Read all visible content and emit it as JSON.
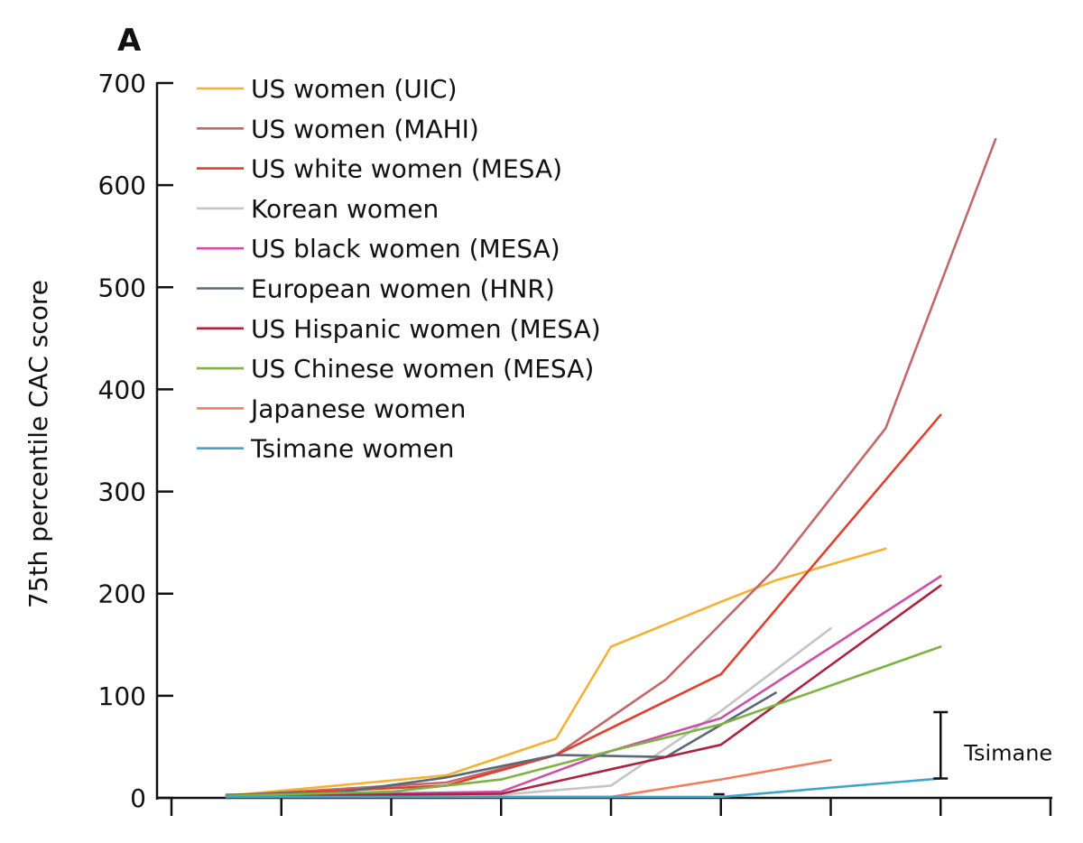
{
  "panel_label": "A",
  "chart_data": {
    "type": "line",
    "title": "",
    "xlabel": "",
    "ylabel": "75th percentile CAC score",
    "ylim": [
      0,
      700
    ],
    "yticks": [
      0,
      100,
      200,
      300,
      400,
      500,
      600,
      700
    ],
    "x_tick_count": 9,
    "grid": false,
    "legend_position": "top-left",
    "series": [
      {
        "name": "US women (UIC)",
        "color": "#f2b233",
        "points": [
          [
            0.5,
            2
          ],
          [
            2.5,
            22
          ],
          [
            3.5,
            58
          ],
          [
            4,
            148
          ],
          [
            5,
            192
          ],
          [
            5.5,
            213
          ],
          [
            6.5,
            244
          ]
        ]
      },
      {
        "name": "US women (MAHI)",
        "color": "#c0686a",
        "points": [
          [
            0.5,
            2
          ],
          [
            2.5,
            15
          ],
          [
            3.5,
            42
          ],
          [
            4.5,
            116
          ],
          [
            5.5,
            225
          ],
          [
            6.5,
            362
          ],
          [
            7.5,
            645
          ]
        ]
      },
      {
        "name": "US white women (MESA)",
        "color": "#e0412f",
        "points": [
          [
            0.5,
            2
          ],
          [
            2.5,
            12
          ],
          [
            3.5,
            42
          ],
          [
            5,
            121
          ],
          [
            7,
            375
          ]
        ]
      },
      {
        "name": "Korean women",
        "color": "#c4c4c4",
        "points": [
          [
            0.5,
            1
          ],
          [
            3,
            3
          ],
          [
            4,
            12
          ],
          [
            5,
            85
          ],
          [
            6,
            166
          ]
        ]
      },
      {
        "name": "US black women (MESA)",
        "color": "#cc4fa8",
        "points": [
          [
            0.5,
            2
          ],
          [
            3,
            6
          ],
          [
            4,
            46
          ],
          [
            5,
            78
          ],
          [
            7,
            217
          ]
        ]
      },
      {
        "name": "European women (HNR)",
        "color": "#5a6877",
        "points": [
          [
            0.5,
            3
          ],
          [
            1.5,
            5
          ],
          [
            2.5,
            20
          ],
          [
            3.5,
            42
          ],
          [
            4.5,
            40
          ],
          [
            5.5,
            103
          ]
        ]
      },
      {
        "name": "US Hispanic women (MESA)",
        "color": "#a8243f",
        "points": [
          [
            0.5,
            2
          ],
          [
            3,
            4
          ],
          [
            4,
            28
          ],
          [
            5,
            52
          ],
          [
            7,
            208
          ]
        ]
      },
      {
        "name": "US Chinese women (MESA)",
        "color": "#7cb342",
        "points": [
          [
            0.5,
            2
          ],
          [
            2,
            6
          ],
          [
            3,
            18
          ],
          [
            4,
            46
          ],
          [
            5,
            72
          ],
          [
            7,
            148
          ]
        ]
      },
      {
        "name": "Japanese women",
        "color": "#ee7e5f",
        "points": [
          [
            0.5,
            1
          ],
          [
            4,
            1
          ],
          [
            5,
            18
          ],
          [
            6,
            37
          ]
        ]
      },
      {
        "name": "Tsimane women",
        "color": "#3ea4c8",
        "points": [
          [
            0.5,
            1
          ],
          [
            5,
            1
          ],
          [
            7,
            19
          ]
        ]
      }
    ],
    "annotations": [
      {
        "label": "Tsimane",
        "x": 7,
        "ylow": 19,
        "yhigh": 84
      }
    ]
  }
}
